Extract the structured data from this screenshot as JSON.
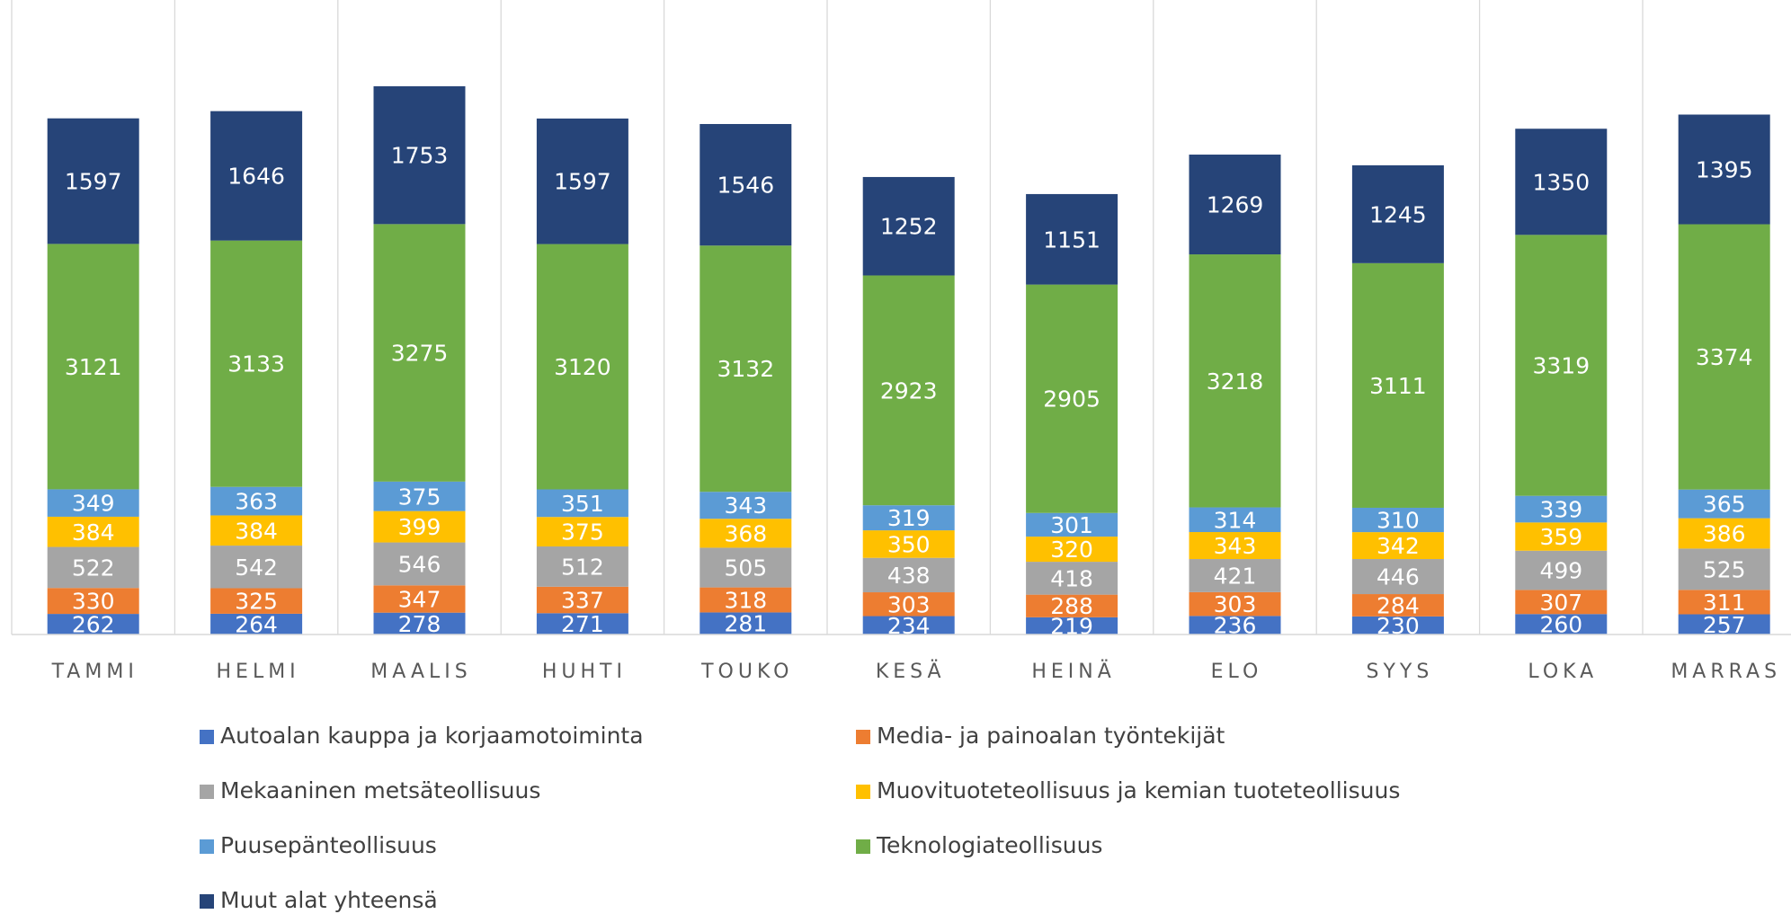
{
  "chart_data": {
    "type": "stacked_bar",
    "categories": [
      "TAMMI",
      "HELMI",
      "MAALIS",
      "HUHTI",
      "TOUKO",
      "KESÄ",
      "HEINÄ",
      "ELO",
      "SYYS",
      "LOKA",
      "MARRAS"
    ],
    "series": [
      {
        "name": "Autoalan kauppa ja korjaamotoiminta",
        "color": "#4472c4",
        "values": [
          262,
          264,
          278,
          271,
          281,
          234,
          219,
          236,
          230,
          260,
          257
        ]
      },
      {
        "name": "Media- ja painoalan työntekijät",
        "color": "#ed7d31",
        "values": [
          330,
          325,
          347,
          337,
          318,
          303,
          288,
          303,
          284,
          307,
          311
        ]
      },
      {
        "name": "Mekaaninen metsäteollisuus",
        "color": "#a5a5a5",
        "values": [
          522,
          542,
          546,
          512,
          505,
          438,
          418,
          421,
          446,
          499,
          525
        ]
      },
      {
        "name": "Muovituoteteollisuus ja kemian tuoteteollisuus",
        "color": "#ffc000",
        "values": [
          384,
          384,
          399,
          375,
          368,
          350,
          320,
          343,
          342,
          359,
          386
        ]
      },
      {
        "name": "Puusepänteollisuus",
        "color": "#5b9bd5",
        "values": [
          349,
          363,
          375,
          351,
          343,
          319,
          301,
          314,
          310,
          339,
          365
        ]
      },
      {
        "name": "Teknologiateollisuus",
        "color": "#70ad47",
        "values": [
          3121,
          3133,
          3275,
          3120,
          3132,
          2923,
          2905,
          3218,
          3111,
          3319,
          3374
        ]
      },
      {
        "name": "Muut alat yhteensä",
        "color": "#264478",
        "values": [
          1597,
          1646,
          1753,
          1597,
          1546,
          1252,
          1151,
          1269,
          1245,
          1350,
          1395
        ]
      }
    ]
  }
}
